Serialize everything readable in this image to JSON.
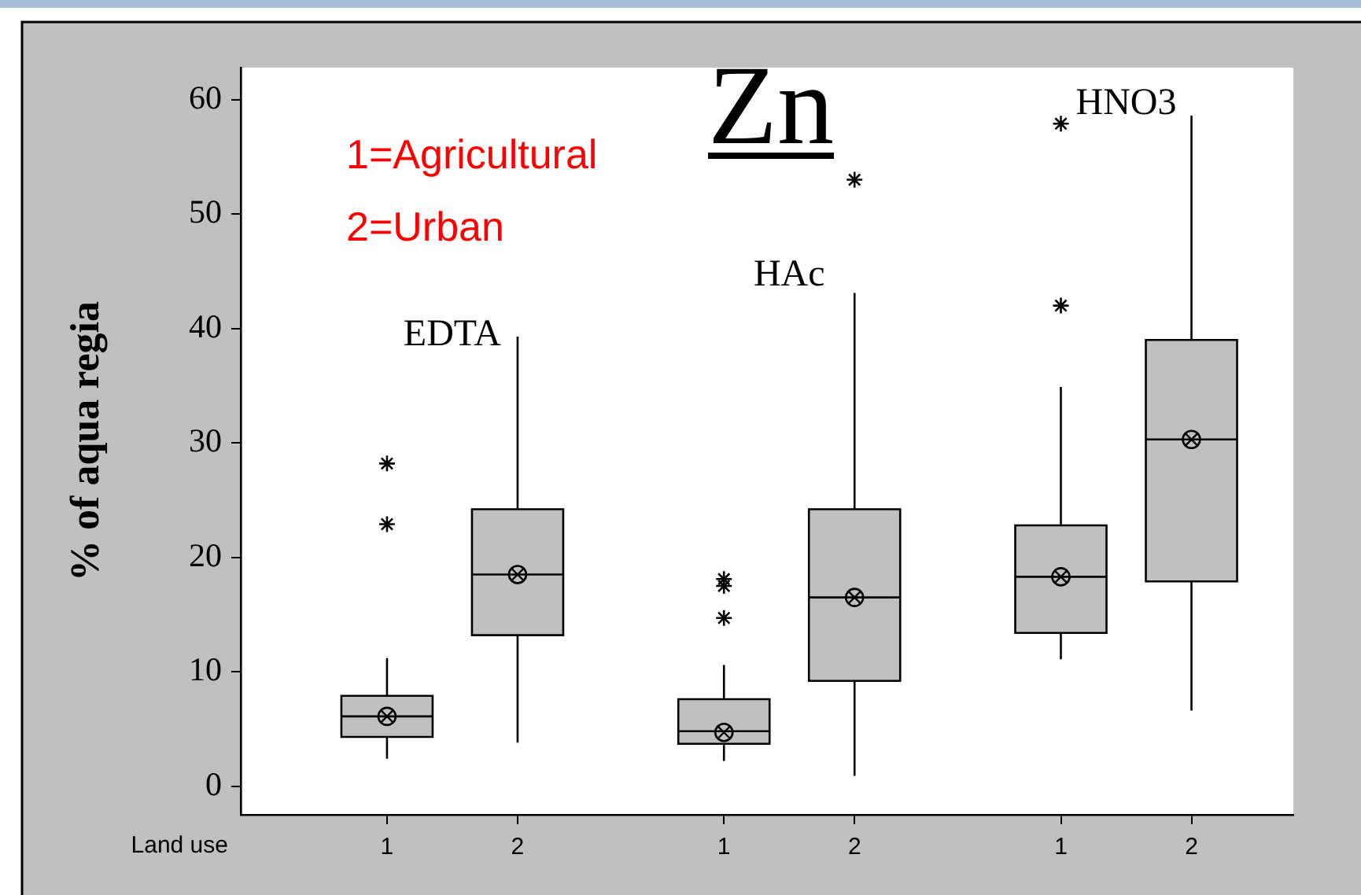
{
  "chart_data": {
    "type": "box",
    "title": "Zn",
    "xlabel": "Land use",
    "ylabel": "% of aqua regia",
    "categories": [
      "1",
      "2",
      "1",
      "2",
      "1",
      "2"
    ],
    "color": "#c0c0c0",
    "boxes": [
      {
        "low": 2.4,
        "q1": 4.3,
        "median": 6.1,
        "q3": 7.9,
        "high": 11.2,
        "mean": 6.1,
        "outliers": [
          22.9,
          28.2
        ]
      },
      {
        "low": 3.8,
        "q1": 13.2,
        "median": 18.5,
        "q3": 24.2,
        "high": 39.3,
        "mean": 18.5
      },
      {
        "low": 2.2,
        "q1": 3.7,
        "median": 4.8,
        "q3": 7.6,
        "high": 10.6,
        "mean": 4.7,
        "outliers": [
          14.7,
          17.5,
          18.1
        ]
      },
      {
        "low": 0.9,
        "q1": 9.2,
        "median": 16.5,
        "q3": 24.2,
        "high": 43.1,
        "mean": 16.5,
        "outliers": [
          53.0
        ]
      },
      {
        "low": 11.1,
        "q1": 13.4,
        "median": 18.3,
        "q3": 22.8,
        "high": 34.9,
        "mean": 18.3,
        "outliers": [
          42.0,
          57.9
        ]
      },
      {
        "low": 6.6,
        "q1": 17.9,
        "median": 30.3,
        "q3": 39.0,
        "high": 58.6,
        "mean": 30.3
      }
    ],
    "ylim": [
      -2.5,
      62.8
    ],
    "yticks": [
      0,
      10,
      20,
      30,
      40,
      50,
      60
    ],
    "annotations": [
      "EDTA",
      "HAc",
      "HNO3",
      "1=Agricultural",
      "2=Urban"
    ]
  }
}
